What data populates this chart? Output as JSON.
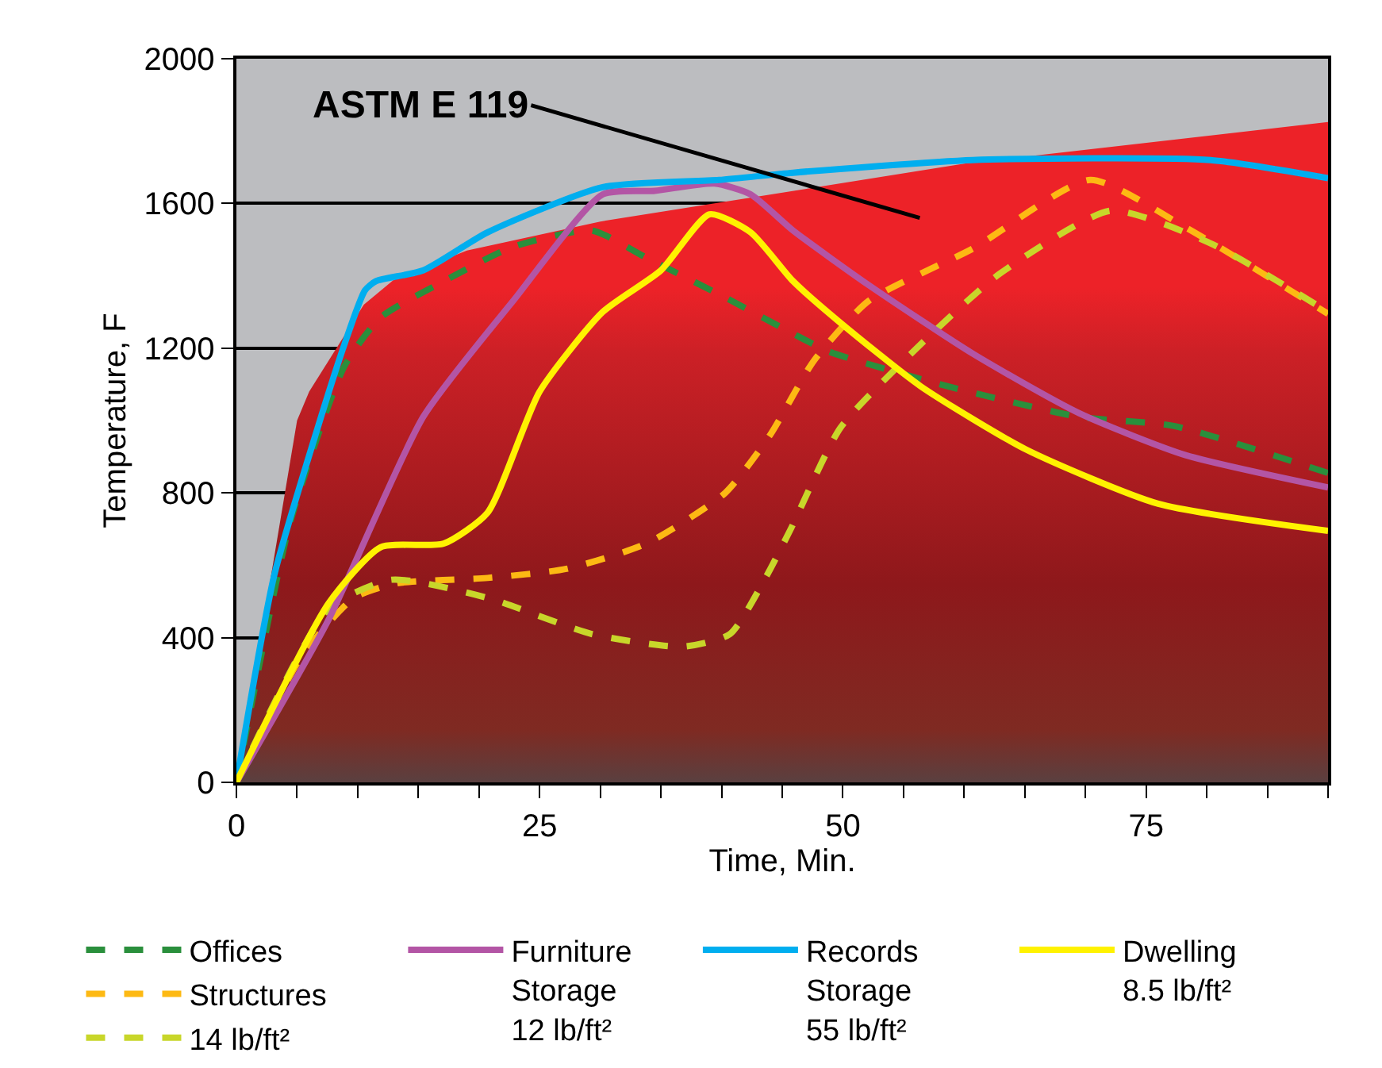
{
  "chart_data": {
    "type": "line",
    "xlabel": "Time, Min.",
    "ylabel": "Temperature, F",
    "xlim": [
      0,
      90
    ],
    "ylim": [
      0,
      2000
    ],
    "xticks": [
      0,
      {
        "value": 5,
        "label": null
      },
      {
        "value": 10,
        "label": null
      },
      {
        "value": 15,
        "label": null
      },
      {
        "value": 20,
        "label": null
      },
      25,
      {
        "value": 30,
        "label": null
      },
      {
        "value": 35,
        "label": null
      },
      {
        "value": 40,
        "label": null
      },
      {
        "value": 45,
        "label": null
      },
      50,
      {
        "value": 55,
        "label": null
      },
      {
        "value": 60,
        "label": null
      },
      {
        "value": 65,
        "label": null
      },
      {
        "value": 70,
        "label": null
      },
      75,
      {
        "value": 80,
        "label": null
      },
      {
        "value": 85,
        "label": null
      },
      {
        "value": 90,
        "label": null
      }
    ],
    "yticks": [
      0,
      400,
      800,
      1200,
      1600,
      2000
    ],
    "grid": "y",
    "legend": "bottom",
    "marker": "none",
    "annotations": [
      "ASTM E 119"
    ],
    "series": [
      {
        "type": "area",
        "color": "#ed2228",
        "x": [
          0,
          5,
          6,
          10.5,
          13,
          19,
          30,
          60,
          90
        ],
        "values": [
          0,
          1000,
          1080,
          1320,
          1390,
          1470,
          1550,
          1710,
          1825
        ]
      },
      {
        "name": "Offices",
        "color": "#2a8f3c",
        "line_style": "dashed",
        "x": [
          0,
          4.4,
          8.9,
          11.9,
          17.1,
          22.8,
          29.3,
          33.8,
          40.3,
          45.9,
          48.9,
          58.6,
          69.5,
          77.3,
          90
        ],
        "values": [
          0,
          715,
          1150,
          1285,
          1385,
          1480,
          1525,
          1450,
          1340,
          1240,
          1190,
          1095,
          1010,
          985,
          855
        ]
      },
      {
        "name": "Structures",
        "color": "#fdb913",
        "line_style": "dashed",
        "x": [
          0,
          5.4,
          9.7,
          13.2,
          20.7,
          27.2,
          33.8,
          40.3,
          44,
          47.6,
          52.1,
          60.7,
          70.4,
          78.2,
          90
        ],
        "values": [
          0,
          350,
          510,
          550,
          565,
          590,
          660,
          800,
          960,
          1165,
          1330,
          1475,
          1665,
          1535,
          1295
        ]
      },
      {
        "name": "14 lb/ft²",
        "color": "#c8d62a",
        "line_style": "dashed",
        "x": [
          0,
          7.6,
          12.8,
          20.7,
          29.3,
          36.8,
          40.7,
          43.7,
          45.7,
          49.8,
          56.4,
          62.9,
          72.1,
          80.3,
          90
        ],
        "values": [
          0,
          480,
          560,
          510,
          410,
          375,
          410,
          570,
          700,
          980,
          1210,
          1405,
          1580,
          1490,
          1300
        ]
      },
      {
        "name": "Furniture\nStorage\n12 lb/ft²",
        "color": "#b355a5",
        "line_style": "solid",
        "x": [
          0,
          7.6,
          15.4,
          22.8,
          30.2,
          34.5,
          39.4,
          42.4,
          45.9,
          52.1,
          60.7,
          69.5,
          78.2,
          90
        ],
        "values": [
          0,
          450,
          1010,
          1330,
          1625,
          1635,
          1655,
          1625,
          1525,
          1375,
          1185,
          1020,
          905,
          815
        ]
      },
      {
        "name": "Records\nStorage\n55 lb/ft²",
        "color": "#00aeef",
        "line_style": "solid",
        "x": [
          0,
          3.1,
          6.7,
          8.9,
          10.6,
          11.5,
          15.4,
          20.7,
          30.2,
          39.8,
          45.9,
          60.7,
          80.3,
          90
        ],
        "values": [
          0,
          570,
          980,
          1210,
          1360,
          1385,
          1415,
          1520,
          1645,
          1665,
          1685,
          1720,
          1720,
          1670
        ]
      },
      {
        "name": "Dwelling\n8.5 lb/ft²",
        "color": "#fff200",
        "line_style": "solid",
        "x": [
          0,
          7.6,
          11.9,
          17.1,
          20.7,
          25,
          30.2,
          35,
          39,
          42.4,
          45.9,
          49.8,
          56.4,
          65.1,
          76,
          90
        ],
        "values": [
          0,
          495,
          650,
          660,
          745,
          1080,
          1300,
          1415,
          1570,
          1520,
          1385,
          1270,
          1095,
          920,
          770,
          695
        ]
      }
    ]
  }
}
